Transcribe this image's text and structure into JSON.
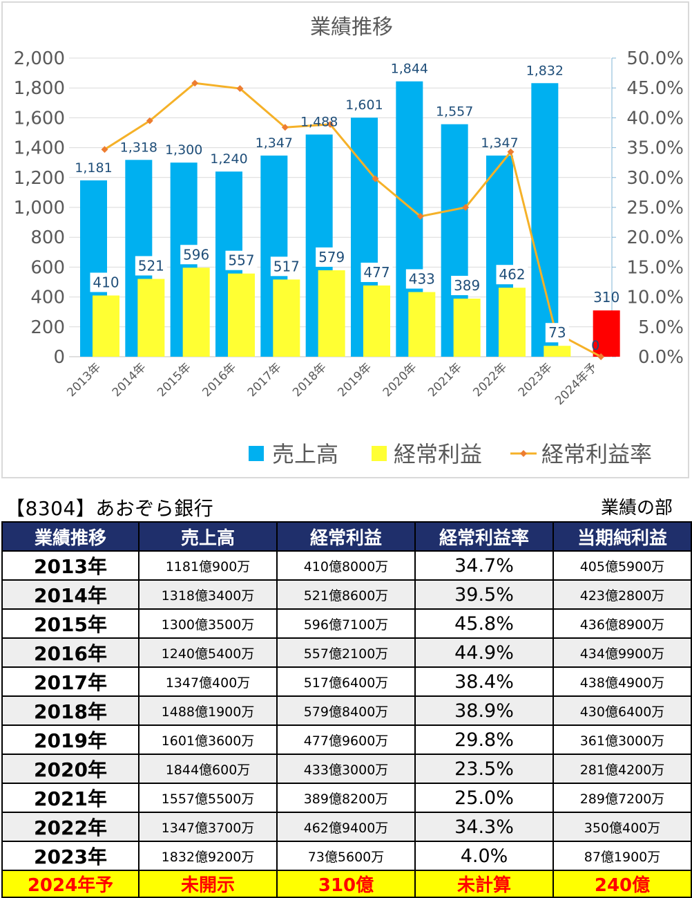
{
  "chart_data": {
    "type": "bar",
    "title": "業績推移",
    "categories": [
      "2013年",
      "2014年",
      "2015年",
      "2016年",
      "2017年",
      "2018年",
      "2019年",
      "2020年",
      "2021年",
      "2022年",
      "2023年",
      "2024年予"
    ],
    "series": [
      {
        "name": "売上高",
        "kind": "bar",
        "axis": "left",
        "color": "#00b0f0",
        "values": [
          1181,
          1318,
          1300,
          1240,
          1347,
          1488,
          1601,
          1844,
          1557,
          1347,
          1832,
          null
        ],
        "labels": [
          "1,181",
          "1,318",
          "1,300",
          "1,240",
          "1,347",
          "1,488",
          "1,601",
          "1,844",
          "1,557",
          "1,347",
          "1,832",
          ""
        ]
      },
      {
        "name": "経常利益",
        "kind": "bar",
        "axis": "left",
        "color": "#ffff33",
        "values": [
          410,
          521,
          596,
          557,
          517,
          579,
          477,
          433,
          389,
          462,
          73,
          310
        ],
        "labels": [
          "410",
          "521",
          "596",
          "557",
          "517",
          "579",
          "477",
          "433",
          "389",
          "462",
          "73",
          "310"
        ],
        "highlight_color": "#ff0000",
        "highlight_index": 11
      },
      {
        "name": "経常利益率",
        "kind": "line",
        "axis": "right",
        "color": "#f5b128",
        "marker_color": "#ed7d31",
        "values": [
          34.7,
          39.5,
          45.8,
          44.9,
          38.4,
          38.9,
          29.8,
          23.5,
          25.0,
          34.3,
          4.0,
          0
        ],
        "labels": [
          "",
          "",
          "",
          "",
          "",
          "",
          "",
          "",
          "",
          "",
          "",
          "0"
        ]
      }
    ],
    "ylim": [
      0,
      2000
    ],
    "y_ticks": [
      "0",
      "200",
      "400",
      "600",
      "800",
      "1,000",
      "1,200",
      "1,400",
      "1,600",
      "1,800",
      "2,000"
    ],
    "y2lim": [
      0,
      50
    ],
    "y2_ticks": [
      "0.0%",
      "5.0%",
      "10.0%",
      "15.0%",
      "20.0%",
      "25.0%",
      "30.0%",
      "35.0%",
      "40.0%",
      "45.0%",
      "50.0%"
    ],
    "grid": true,
    "legend_position": "bottom",
    "label_color": "#1f4e79"
  },
  "header": {
    "company": "【8304】あおぞら銀行",
    "section": "業績の部"
  },
  "table": {
    "columns": [
      "業績推移",
      "売上高",
      "経常利益",
      "経常利益率",
      "当期純利益"
    ],
    "rows": [
      [
        "2013年",
        "1181億900万",
        "410億8000万",
        "34.7%",
        "405億5900万"
      ],
      [
        "2014年",
        "1318億3400万",
        "521億8600万",
        "39.5%",
        "423億2800万"
      ],
      [
        "2015年",
        "1300億3500万",
        "596億7100万",
        "45.8%",
        "436億8900万"
      ],
      [
        "2016年",
        "1240億5400万",
        "557億2100万",
        "44.9%",
        "434億9900万"
      ],
      [
        "2017年",
        "1347億400万",
        "517億6400万",
        "38.4%",
        "438億4900万"
      ],
      [
        "2018年",
        "1488億1900万",
        "579億8400万",
        "38.9%",
        "430億6400万"
      ],
      [
        "2019年",
        "1601億3600万",
        "477億9600万",
        "29.8%",
        "361億3000万"
      ],
      [
        "2020年",
        "1844億600万",
        "433億3000万",
        "23.5%",
        "281億4200万"
      ],
      [
        "2021年",
        "1557億5500万",
        "389億8200万",
        "25.0%",
        "289億7200万"
      ],
      [
        "2022年",
        "1347億3700万",
        "462億9400万",
        "34.3%",
        "350億400万"
      ],
      [
        "2023年",
        "1832億9200万",
        "73億5600万",
        "4.0%",
        "87億1900万"
      ]
    ],
    "forecast_row": [
      "2024年予",
      "未開示",
      "310億",
      "未計算",
      "240億"
    ]
  }
}
